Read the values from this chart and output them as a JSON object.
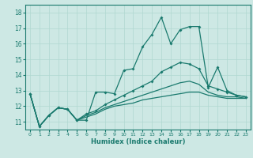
{
  "xlabel": "Humidex (Indice chaleur)",
  "xlim": [
    -0.5,
    23.5
  ],
  "ylim": [
    10.5,
    18.5
  ],
  "yticks": [
    11,
    12,
    13,
    14,
    15,
    16,
    17,
    18
  ],
  "xticks": [
    0,
    1,
    2,
    3,
    4,
    5,
    6,
    7,
    8,
    9,
    10,
    11,
    12,
    13,
    14,
    15,
    16,
    17,
    18,
    19,
    20,
    21,
    22,
    23
  ],
  "background_color": "#cde8e4",
  "grid_color": "#b0d8d0",
  "line_color": "#1a7a6e",
  "line1_with_markers": [
    12.8,
    10.7,
    11.4,
    11.9,
    11.8,
    11.1,
    11.1,
    12.9,
    12.9,
    12.8,
    14.3,
    14.4,
    15.8,
    16.6,
    17.7,
    16.0,
    16.9,
    17.1,
    17.1,
    13.2,
    14.5,
    13.0,
    12.7,
    12.6
  ],
  "line2_smooth_upper": [
    12.8,
    10.7,
    11.4,
    11.9,
    11.8,
    11.1,
    11.5,
    11.7,
    12.1,
    12.4,
    12.7,
    13.0,
    13.3,
    13.6,
    14.2,
    14.5,
    14.8,
    14.7,
    14.4,
    13.3,
    13.1,
    12.9,
    12.7,
    12.6
  ],
  "line3_smooth_mid": [
    12.8,
    10.7,
    11.4,
    11.9,
    11.8,
    11.1,
    11.4,
    11.6,
    11.9,
    12.1,
    12.3,
    12.5,
    12.7,
    12.9,
    13.1,
    13.3,
    13.5,
    13.6,
    13.4,
    12.9,
    12.7,
    12.6,
    12.6,
    12.5
  ],
  "line4_smooth_lower": [
    12.8,
    10.7,
    11.4,
    11.9,
    11.8,
    11.1,
    11.3,
    11.5,
    11.8,
    12.0,
    12.1,
    12.2,
    12.4,
    12.5,
    12.6,
    12.7,
    12.8,
    12.9,
    12.9,
    12.7,
    12.6,
    12.5,
    12.5,
    12.5
  ]
}
